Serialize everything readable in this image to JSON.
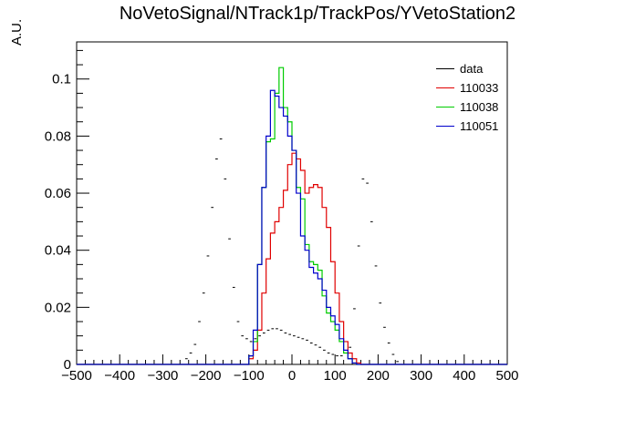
{
  "title": "NoVetoSignal/NTrack1p/TrackPos/YVetoStation2",
  "chart_data": {
    "type": "histogram",
    "title": "NoVetoSignal/NTrack1p/TrackPos/YVetoStation2",
    "xlabel": "",
    "ylabel": "A.U.",
    "xlim": [
      -500,
      500
    ],
    "ylim": [
      0,
      0.113
    ],
    "x_ticks": [
      -500,
      -400,
      -300,
      -200,
      -100,
      0,
      100,
      200,
      300,
      400,
      500
    ],
    "y_ticks": [
      0,
      0.02,
      0.04,
      0.06,
      0.08,
      0.1
    ],
    "x_tick_labels": [
      "−500",
      "−400",
      "−300",
      "−200",
      "−100",
      "0",
      "100",
      "200",
      "300",
      "400",
      "500"
    ],
    "y_tick_labels": [
      "0",
      "0.02",
      "0.04",
      "0.06",
      "0.08",
      "0.1"
    ],
    "bin_width": 10,
    "bin_start": -500,
    "legend": {
      "position": "top-right",
      "entries": [
        "data",
        "110033",
        "110038",
        "110051"
      ]
    },
    "series": [
      {
        "name": "data",
        "style": "points",
        "color": "#000000",
        "values": [
          0,
          0,
          0,
          0,
          0,
          0,
          0,
          0,
          0,
          0,
          0,
          0,
          0,
          0,
          0,
          0,
          0,
          0,
          0,
          0,
          0,
          0,
          0,
          0,
          0,
          0.002,
          0.004,
          0.007,
          0.015,
          0.025,
          0.038,
          0.055,
          0.072,
          0.079,
          0.065,
          0.044,
          0.027,
          0.015,
          0.01,
          0.009,
          0.008,
          0.009,
          0.01,
          0.011,
          0.012,
          0.0125,
          0.0125,
          0.012,
          0.011,
          0.0105,
          0.01,
          0.0095,
          0.009,
          0.0085,
          0.0075,
          0.0068,
          0.006,
          0.005,
          0.004,
          0.0035,
          0.003,
          0.003,
          0.004,
          0.006,
          0.0195,
          0.0415,
          0.065,
          0.0635,
          0.05,
          0.0345,
          0.0215,
          0.013,
          0.0075,
          0.0035,
          0.001,
          0,
          0,
          0,
          0,
          0,
          0,
          0,
          0,
          0,
          0,
          0,
          0,
          0,
          0,
          0,
          0,
          0,
          0,
          0,
          0,
          0,
          0,
          0,
          0,
          0
        ]
      },
      {
        "name": "110033",
        "style": "step",
        "color": "#e00000",
        "values": [
          0,
          0,
          0,
          0,
          0,
          0,
          0,
          0,
          0,
          0,
          0,
          0,
          0,
          0,
          0,
          0,
          0,
          0,
          0,
          0,
          0,
          0,
          0,
          0,
          0,
          0,
          0,
          0,
          0,
          0,
          0,
          0,
          0,
          0,
          0,
          0,
          0,
          0,
          0,
          0,
          0.002,
          0.005,
          0.012,
          0.025,
          0.037,
          0.046,
          0.05,
          0.055,
          0.061,
          0.07,
          0.074,
          0.072,
          0.068,
          0.06,
          0.062,
          0.063,
          0.062,
          0.055,
          0.048,
          0.036,
          0.025,
          0.015,
          0.008,
          0.004,
          0.002,
          0.0005,
          0,
          0,
          0,
          0,
          0,
          0,
          0,
          0,
          0,
          0,
          0,
          0,
          0,
          0,
          0,
          0,
          0,
          0,
          0,
          0,
          0,
          0,
          0,
          0,
          0,
          0,
          0,
          0,
          0,
          0,
          0,
          0,
          0,
          0
        ]
      },
      {
        "name": "110038",
        "style": "step",
        "color": "#00cc00",
        "values": [
          0,
          0,
          0,
          0,
          0,
          0,
          0,
          0,
          0,
          0,
          0,
          0,
          0,
          0,
          0,
          0,
          0,
          0,
          0,
          0,
          0,
          0,
          0,
          0,
          0,
          0,
          0,
          0,
          0,
          0,
          0,
          0,
          0,
          0,
          0,
          0,
          0,
          0,
          0,
          0,
          0.003,
          0.008,
          0.035,
          0.062,
          0.078,
          0.079,
          0.095,
          0.104,
          0.09,
          0.085,
          0.075,
          0.062,
          0.058,
          0.042,
          0.036,
          0.035,
          0.033,
          0.024,
          0.018,
          0.015,
          0.012,
          0.008,
          0.004,
          0.002,
          0.0005,
          0,
          0,
          0,
          0,
          0,
          0,
          0,
          0,
          0,
          0,
          0,
          0,
          0,
          0,
          0,
          0,
          0,
          0,
          0,
          0,
          0,
          0,
          0,
          0,
          0,
          0,
          0,
          0,
          0,
          0,
          0,
          0,
          0,
          0,
          0
        ]
      },
      {
        "name": "110051",
        "style": "step",
        "color": "#0000cc",
        "values": [
          0,
          0,
          0,
          0,
          0,
          0,
          0,
          0,
          0,
          0,
          0,
          0,
          0,
          0,
          0,
          0,
          0,
          0,
          0,
          0,
          0,
          0,
          0,
          0,
          0,
          0,
          0,
          0,
          0,
          0,
          0,
          0,
          0,
          0,
          0,
          0,
          0,
          0,
          0,
          0,
          0.003,
          0.012,
          0.035,
          0.062,
          0.08,
          0.096,
          0.094,
          0.09,
          0.087,
          0.08,
          0.075,
          0.06,
          0.045,
          0.04,
          0.034,
          0.032,
          0.03,
          0.026,
          0.02,
          0.017,
          0.014,
          0.009,
          0.005,
          0.002,
          0.0005,
          0,
          0,
          0,
          0,
          0,
          0,
          0,
          0,
          0,
          0,
          0,
          0,
          0,
          0,
          0,
          0,
          0,
          0,
          0,
          0,
          0,
          0,
          0,
          0,
          0,
          0,
          0,
          0,
          0,
          0,
          0,
          0,
          0,
          0,
          0
        ]
      }
    ]
  }
}
